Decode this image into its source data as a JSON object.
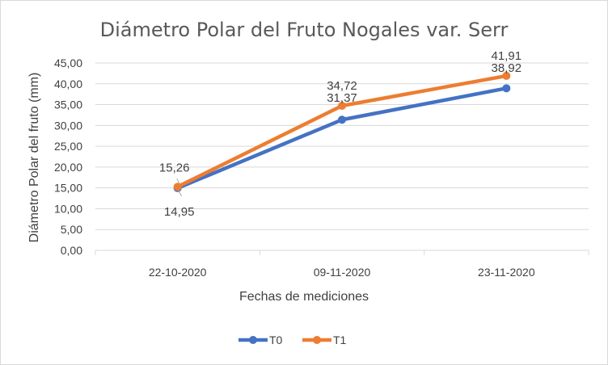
{
  "chart_data": {
    "type": "line",
    "title": "Diámetro Polar del Fruto Nogales var. Serr",
    "xlabel": "Fechas de mediciones",
    "ylabel": "Diámetro Polar del fruto (mm)",
    "categories": [
      "22-10-2020",
      "09-11-2020",
      "23-11-2020"
    ],
    "ylim": [
      0,
      45
    ],
    "ytick_step": 5,
    "ytick_labels": [
      "0,00",
      "5,00",
      "10,00",
      "15,00",
      "20,00",
      "25,00",
      "30,00",
      "35,00",
      "40,00",
      "45,00"
    ],
    "grid": true,
    "legend_position": "bottom",
    "series": [
      {
        "name": "T0",
        "values": [
          14.95,
          31.37,
          38.92
        ],
        "labels": [
          "14,95",
          "31,37",
          "38,92"
        ],
        "color": "#4472C4"
      },
      {
        "name": "T1",
        "values": [
          15.26,
          34.72,
          41.91
        ],
        "labels": [
          "15,26",
          "34,72",
          "41,91"
        ],
        "color": "#ED7D31"
      }
    ]
  }
}
